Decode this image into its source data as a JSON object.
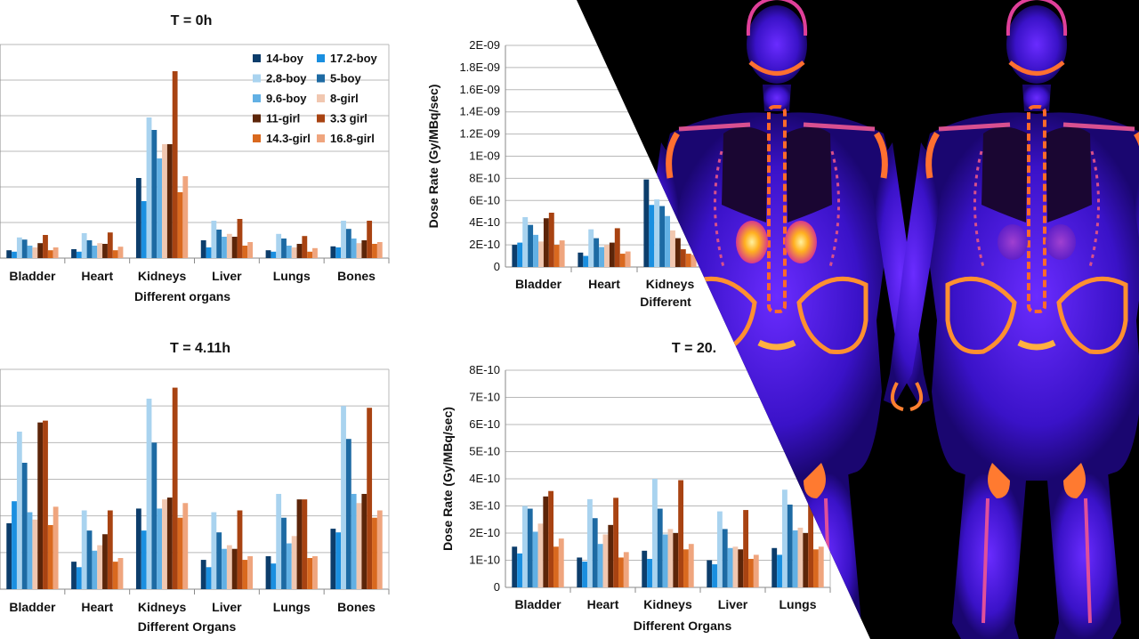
{
  "colors": {
    "14-boy": "#0c3d6b",
    "17.2-boy": "#1a8fe0",
    "2.8-boy": "#a9d3ef",
    "5-boy": "#1d6aa3",
    "9.6-boy": "#62b0e4",
    "8-girl": "#f1c7b0",
    "11-girl": "#5c2509",
    "3.3 girl": "#a84312",
    "14.3-girl": "#d9691f",
    "16.8-girl": "#efa57e"
  },
  "legend": [
    "14-boy",
    "17.2-boy",
    "2.8-boy",
    "5-boy",
    "9.6-boy",
    "8-girl",
    "11-girl",
    "3.3 girl",
    "14.3-girl",
    "16.8-girl"
  ],
  "chart_data": [
    {
      "type": "bar",
      "title": "T = 0h",
      "xlabel": "Different organs",
      "ylabel": "",
      "ylim": [
        0,
        6
      ],
      "yticks": [],
      "categories": [
        "Bladder",
        "Heart",
        "Kidneys",
        "Liver",
        "Lungs",
        "Bones"
      ],
      "series": [
        {
          "name": "14-boy",
          "values": [
            0.22,
            0.25,
            2.25,
            0.5,
            0.22,
            0.33
          ]
        },
        {
          "name": "17.2-boy",
          "values": [
            0.18,
            0.18,
            1.6,
            0.3,
            0.18,
            0.3
          ]
        },
        {
          "name": "2.8-boy",
          "values": [
            0.58,
            0.7,
            3.95,
            1.05,
            0.68,
            1.05
          ]
        },
        {
          "name": "5-boy",
          "values": [
            0.52,
            0.5,
            3.6,
            0.8,
            0.55,
            0.82
          ]
        },
        {
          "name": "9.6-boy",
          "values": [
            0.35,
            0.35,
            2.8,
            0.6,
            0.35,
            0.55
          ]
        },
        {
          "name": "8-girl",
          "values": [
            0.3,
            0.42,
            3.2,
            0.68,
            0.3,
            0.42
          ]
        },
        {
          "name": "11-girl",
          "values": [
            0.42,
            0.4,
            3.2,
            0.6,
            0.4,
            0.5
          ]
        },
        {
          "name": "3.3 girl",
          "values": [
            0.65,
            0.72,
            5.25,
            1.1,
            0.62,
            1.05
          ]
        },
        {
          "name": "14.3-girl",
          "values": [
            0.22,
            0.22,
            1.85,
            0.35,
            0.18,
            0.4
          ]
        },
        {
          "name": "16.8-girl",
          "values": [
            0.3,
            0.32,
            2.3,
            0.45,
            0.28,
            0.45
          ]
        }
      ]
    },
    {
      "type": "bar",
      "title": "T = 4.11h",
      "xlabel": "Different Organs",
      "ylabel": "",
      "ylim": [
        0,
        6
      ],
      "yticks": [],
      "categories": [
        "Bladder",
        "Heart",
        "Kidneys",
        "Liver",
        "Lungs",
        "Bones"
      ],
      "series": [
        {
          "name": "14-boy",
          "values": [
            1.8,
            0.75,
            2.2,
            0.8,
            0.9,
            1.65
          ]
        },
        {
          "name": "17.2-boy",
          "values": [
            2.4,
            0.6,
            1.6,
            0.6,
            0.7,
            1.55
          ]
        },
        {
          "name": "2.8-boy",
          "values": [
            4.3,
            2.15,
            5.2,
            2.1,
            2.6,
            5.0
          ]
        },
        {
          "name": "5-boy",
          "values": [
            3.45,
            1.6,
            4.0,
            1.55,
            1.95,
            4.1
          ]
        },
        {
          "name": "9.6-boy",
          "values": [
            2.1,
            1.05,
            2.2,
            1.1,
            1.25,
            2.6
          ]
        },
        {
          "name": "8-girl",
          "values": [
            1.9,
            1.2,
            2.45,
            1.2,
            1.45,
            2.35
          ]
        },
        {
          "name": "11-girl",
          "values": [
            4.55,
            1.5,
            2.5,
            1.1,
            2.45,
            2.6
          ]
        },
        {
          "name": "3.3 girl",
          "values": [
            4.6,
            2.15,
            5.5,
            2.15,
            2.45,
            4.95
          ]
        },
        {
          "name": "14.3-girl",
          "values": [
            1.75,
            0.75,
            1.95,
            0.8,
            0.85,
            1.95
          ]
        },
        {
          "name": "16.8-girl",
          "values": [
            2.25,
            0.85,
            2.35,
            0.9,
            0.9,
            2.15
          ]
        }
      ]
    },
    {
      "type": "bar",
      "title": "",
      "xlabel": "Different",
      "ylabel": "Dose Rate (Gy/MBq/sec)",
      "ylim": [
        0,
        2e-09
      ],
      "yticks": [
        "0",
        "2E-10",
        "4E-10",
        "6E-10",
        "8E-10",
        "1E-09",
        "1.2E-09",
        "1.4E-09",
        "1.6E-09",
        "1.8E-09",
        "2E-09"
      ],
      "categories": [
        "Bladder",
        "Heart",
        "Kidneys"
      ],
      "series": [
        {
          "name": "14-boy",
          "values": [
            2e-10,
            1.3e-10,
            7.9e-10
          ]
        },
        {
          "name": "17.2-boy",
          "values": [
            2.2e-10,
            1e-10,
            5.6e-10
          ]
        },
        {
          "name": "2.8-boy",
          "values": [
            4.5e-10,
            3.4e-10,
            6.1e-10
          ]
        },
        {
          "name": "5-boy",
          "values": [
            3.8e-10,
            2.6e-10,
            5.5e-10
          ]
        },
        {
          "name": "9.6-boy",
          "values": [
            2.9e-10,
            1.8e-10,
            4.6e-10
          ]
        },
        {
          "name": "8-girl",
          "values": [
            2.3e-10,
            2e-10,
            3.3e-10
          ]
        },
        {
          "name": "11-girl",
          "values": [
            4.4e-10,
            2.2e-10,
            2.6e-10
          ]
        },
        {
          "name": "3.3 girl",
          "values": [
            4.9e-10,
            3.5e-10,
            1.6e-10
          ]
        },
        {
          "name": "14.3-girl",
          "values": [
            2e-10,
            1.2e-10,
            1.2e-10
          ]
        },
        {
          "name": "16.8-girl",
          "values": [
            2.4e-10,
            1.4e-10,
            1.1e-10
          ]
        }
      ]
    },
    {
      "type": "bar",
      "title": "T = 20.",
      "xlabel": "Different Organs",
      "ylabel": "Dose Rate (Gy/MBq/sec)",
      "ylim": [
        0,
        8e-10
      ],
      "yticks": [
        "0",
        "1E-10",
        "2E-10",
        "3E-10",
        "4E-10",
        "5E-10",
        "6E-10",
        "7E-10",
        "8E-10"
      ],
      "categories": [
        "Bladder",
        "Heart",
        "Kidneys",
        "Liver",
        "Lungs"
      ],
      "series": [
        {
          "name": "14-boy",
          "values": [
            1.5e-10,
            1.1e-10,
            1.35e-10,
            1e-10,
            1.45e-10
          ]
        },
        {
          "name": "17.2-boy",
          "values": [
            1.25e-10,
            9.5e-11,
            1.05e-10,
            8.5e-11,
            1.2e-10
          ]
        },
        {
          "name": "2.8-boy",
          "values": [
            3e-10,
            3.25e-10,
            4e-10,
            2.8e-10,
            3.6e-10
          ]
        },
        {
          "name": "5-boy",
          "values": [
            2.9e-10,
            2.55e-10,
            2.9e-10,
            2.15e-10,
            3.05e-10
          ]
        },
        {
          "name": "9.6-boy",
          "values": [
            2.05e-10,
            1.6e-10,
            1.95e-10,
            1.45e-10,
            2.1e-10
          ]
        },
        {
          "name": "8-girl",
          "values": [
            2.35e-10,
            1.95e-10,
            2.15e-10,
            1.5e-10,
            2.2e-10
          ]
        },
        {
          "name": "11-girl",
          "values": [
            3.35e-10,
            2.3e-10,
            2e-10,
            1.4e-10,
            2e-10
          ]
        },
        {
          "name": "3.3 girl",
          "values": [
            3.55e-10,
            3.3e-10,
            3.95e-10,
            2.85e-10,
            3.3e-10
          ]
        },
        {
          "name": "14.3-girl",
          "values": [
            1.5e-10,
            1.1e-10,
            1.4e-10,
            1.05e-10,
            1.4e-10
          ]
        },
        {
          "name": "16.8-girl",
          "values": [
            1.8e-10,
            1.3e-10,
            1.6e-10,
            1.2e-10,
            1.5e-10
          ]
        }
      ]
    }
  ]
}
